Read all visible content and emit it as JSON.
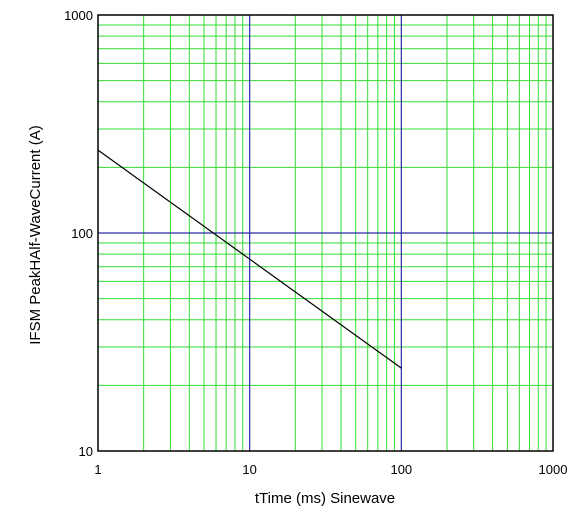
{
  "chart_data": {
    "type": "line",
    "title": "",
    "xlabel": "tTime    (ms)  Sinewave",
    "ylabel": "IFSM PeakHAlf-WaveCurrent  (A)",
    "xscale": "log",
    "yscale": "log",
    "xlim": [
      1,
      1000
    ],
    "ylim": [
      10,
      1000
    ],
    "x_ticks": [
      {
        "value": 1,
        "label": "1"
      },
      {
        "value": 10,
        "label": "10"
      },
      {
        "value": 100,
        "label": "100"
      },
      {
        "value": 1000,
        "label": "1000"
      }
    ],
    "y_ticks": [
      {
        "value": 10,
        "label": "10"
      },
      {
        "value": 100,
        "label": "100"
      },
      {
        "value": 1000,
        "label": "1000"
      }
    ],
    "grid": true,
    "legend": "none",
    "colors": {
      "minor_grid": "#33dd33",
      "major_grid": "#2a2aa8",
      "series": "#000000",
      "frame": "#000000"
    },
    "series": [
      {
        "x": [
          1,
          100
        ],
        "y": [
          240,
          24
        ]
      }
    ]
  }
}
